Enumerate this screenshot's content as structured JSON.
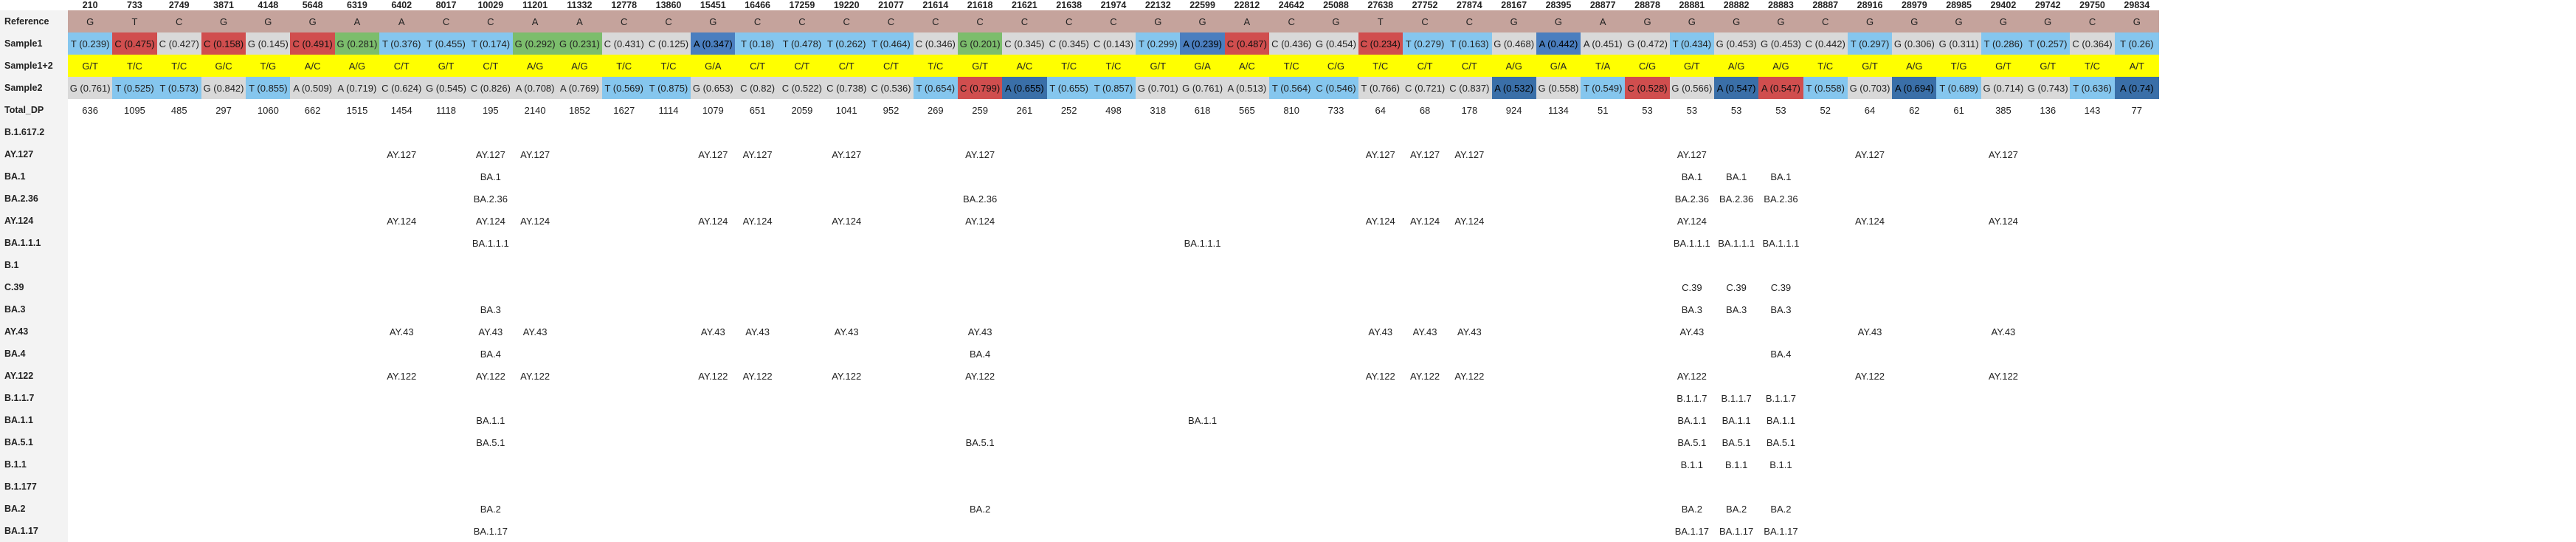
{
  "positions": [
    "210",
    "733",
    "2749",
    "3871",
    "4148",
    "5648",
    "6319",
    "6402",
    "8017",
    "10029",
    "11201",
    "11332",
    "12778",
    "13860",
    "15451",
    "16466",
    "17259",
    "19220",
    "21077",
    "21614",
    "21618",
    "21621",
    "21638",
    "21974",
    "22132",
    "22599",
    "22812",
    "24642",
    "25088",
    "27638",
    "27752",
    "27874",
    "28167",
    "28395",
    "28877",
    "28878",
    "28881",
    "28882",
    "28883",
    "28887",
    "28916",
    "28979",
    "28985",
    "29402",
    "29742",
    "29750",
    "29834"
  ],
  "rows": {
    "reference": {
      "label": "Reference",
      "cells": [
        "G",
        "T",
        "C",
        "G",
        "G",
        "G",
        "A",
        "A",
        "C",
        "C",
        "A",
        "A",
        "C",
        "C",
        "G",
        "C",
        "C",
        "C",
        "C",
        "C",
        "C",
        "C",
        "C",
        "C",
        "G",
        "G",
        "A",
        "C",
        "G",
        "T",
        "C",
        "C",
        "G",
        "G",
        "A",
        "G",
        "G",
        "G",
        "G",
        "C",
        "G",
        "G",
        "G",
        "G",
        "G",
        "C",
        "G"
      ]
    },
    "sample1": {
      "label": "Sample1",
      "cells": [
        "T (0.239)",
        "C (0.475)",
        "C (0.427)",
        "C (0.158)",
        "G (0.145)",
        "C (0.491)",
        "G (0.281)",
        "T (0.376)",
        "T (0.455)",
        "T (0.174)",
        "G (0.292)",
        "G (0.231)",
        "C (0.431)",
        "C (0.125)",
        "A (0.347)",
        "T (0.18)",
        "T (0.478)",
        "T (0.262)",
        "T (0.464)",
        "C (0.346)",
        "G (0.201)",
        "C (0.345)",
        "C (0.345)",
        "C (0.143)",
        "T (0.299)",
        "A (0.239)",
        "C (0.487)",
        "C (0.436)",
        "G (0.454)",
        "C (0.234)",
        "T (0.279)",
        "T (0.163)",
        "G (0.468)",
        "A (0.442)",
        "A (0.451)",
        "G (0.472)",
        "T (0.434)",
        "G (0.453)",
        "G (0.453)",
        "C (0.442)",
        "T (0.297)",
        "G (0.306)",
        "G (0.311)",
        "T (0.286)",
        "T (0.257)",
        "C (0.364)",
        "T (0.26)"
      ]
    },
    "sample12": {
      "label": "Sample1+2",
      "cells": [
        "G/T",
        "T/C",
        "T/C",
        "G/C",
        "T/G",
        "A/C",
        "A/G",
        "C/T",
        "G/T",
        "C/T",
        "A/G",
        "A/G",
        "T/C",
        "T/C",
        "G/A",
        "C/T",
        "C/T",
        "C/T",
        "C/T",
        "T/C",
        "G/T",
        "A/C",
        "T/C",
        "T/C",
        "G/T",
        "G/A",
        "A/C",
        "T/C",
        "C/G",
        "T/C",
        "C/T",
        "C/T",
        "A/G",
        "G/A",
        "T/A",
        "C/G",
        "G/T",
        "A/G",
        "A/G",
        "T/C",
        "G/T",
        "A/G",
        "T/G",
        "G/T",
        "G/T",
        "T/C",
        "A/T"
      ]
    },
    "sample2": {
      "label": "Sample2",
      "cells": [
        "G (0.761)",
        "T (0.525)",
        "T (0.573)",
        "G (0.842)",
        "T (0.855)",
        "A (0.509)",
        "A (0.719)",
        "C (0.624)",
        "G (0.545)",
        "C (0.826)",
        "A (0.708)",
        "A (0.769)",
        "T (0.569)",
        "T (0.875)",
        "G (0.653)",
        "C (0.82)",
        "C (0.522)",
        "C (0.738)",
        "C (0.536)",
        "T (0.654)",
        "C (0.799)",
        "A (0.655)",
        "T (0.655)",
        "T (0.857)",
        "G (0.701)",
        "G (0.761)",
        "A (0.513)",
        "T (0.564)",
        "C (0.546)",
        "T (0.766)",
        "C (0.721)",
        "C (0.837)",
        "A (0.532)",
        "G (0.558)",
        "T (0.549)",
        "C (0.528)",
        "G (0.566)",
        "A (0.547)",
        "A (0.547)",
        "T (0.558)",
        "G (0.703)",
        "A (0.694)",
        "T (0.689)",
        "G (0.714)",
        "G (0.743)",
        "T (0.636)",
        "A (0.74)"
      ]
    },
    "total_dp": {
      "label": "Total_DP",
      "cells": [
        "636",
        "1095",
        "485",
        "297",
        "1060",
        "662",
        "1515",
        "1454",
        "1118",
        "195",
        "2140",
        "1852",
        "1627",
        "1114",
        "1079",
        "651",
        "2059",
        "1041",
        "952",
        "269",
        "259",
        "261",
        "252",
        "498",
        "318",
        "618",
        "565",
        "810",
        "733",
        "64",
        "68",
        "178",
        "924",
        "1134",
        "51",
        "53",
        "53",
        "53",
        "53",
        "52",
        "64",
        "62",
        "61",
        "385",
        "136",
        "143",
        "77"
      ]
    }
  },
  "cell_colors": {
    "sample1": [
      "cT",
      "cR",
      "cC",
      "cR",
      "cC",
      "cR",
      "cGr",
      "cT",
      "cT",
      "cT",
      "cGr",
      "cGr",
      "cC",
      "cC",
      "cA",
      "cT",
      "cT",
      "cT",
      "cT",
      "cC",
      "cGr",
      "cC",
      "cC",
      "cC",
      "cT",
      "cA",
      "cR",
      "cC",
      "cC",
      "cR",
      "cT",
      "cT",
      "cC",
      "cA",
      "cC",
      "cC",
      "cT",
      "cC",
      "cC",
      "cC",
      "cT",
      "cC",
      "cC",
      "cT",
      "cT",
      "cC",
      "cT"
    ],
    "sample2": [
      "cC",
      "cT",
      "cT",
      "cC",
      "cT",
      "cC",
      "cC",
      "cC",
      "cC",
      "cC",
      "cC",
      "cC",
      "cT",
      "cT",
      "cC",
      "cC",
      "cC",
      "cC",
      "cC",
      "cT",
      "cR",
      "cDb",
      "cT",
      "cT",
      "cC",
      "cC",
      "cC",
      "cT",
      "cT",
      "cC",
      "cC",
      "cC",
      "cDb",
      "cC",
      "cT",
      "cR",
      "cC",
      "cDb",
      "cR",
      "cT",
      "cC",
      "cDb",
      "cT",
      "cC",
      "cC",
      "cT",
      "cDb"
    ]
  },
  "lineages": [
    {
      "label": "B.1.617.2",
      "cells": {}
    },
    {
      "label": "AY.127",
      "cells": {
        "6402": "AY.127",
        "10029": "AY.127",
        "11201": "AY.127",
        "15451": "AY.127",
        "16466": "AY.127",
        "19220": "AY.127",
        "21618": "AY.127",
        "27638": "AY.127",
        "27752": "AY.127",
        "27874": "AY.127",
        "28881": "AY.127",
        "28916": "AY.127",
        "29402": "AY.127"
      }
    },
    {
      "label": "BA.1",
      "cells": {
        "10029": "BA.1",
        "28881": "BA.1",
        "28882": "BA.1",
        "28883": "BA.1"
      }
    },
    {
      "label": "BA.2.36",
      "cells": {
        "10029": "BA.2.36",
        "21618": "BA.2.36",
        "28881": "BA.2.36",
        "28882": "BA.2.36",
        "28883": "BA.2.36"
      }
    },
    {
      "label": "AY.124",
      "cells": {
        "6402": "AY.124",
        "10029": "AY.124",
        "11201": "AY.124",
        "15451": "AY.124",
        "16466": "AY.124",
        "19220": "AY.124",
        "21618": "AY.124",
        "27638": "AY.124",
        "27752": "AY.124",
        "27874": "AY.124",
        "28881": "AY.124",
        "28916": "AY.124",
        "29402": "AY.124"
      }
    },
    {
      "label": "BA.1.1.1",
      "cells": {
        "10029": "BA.1.1.1",
        "22599": "BA.1.1.1",
        "28881": "BA.1.1.1",
        "28882": "BA.1.1.1",
        "28883": "BA.1.1.1"
      }
    },
    {
      "label": "B.1",
      "cells": {}
    },
    {
      "label": "C.39",
      "cells": {
        "28881": "C.39",
        "28882": "C.39",
        "28883": "C.39"
      }
    },
    {
      "label": "BA.3",
      "cells": {
        "10029": "BA.3",
        "28881": "BA.3",
        "28882": "BA.3",
        "28883": "BA.3"
      }
    },
    {
      "label": "AY.43",
      "cells": {
        "6402": "AY.43",
        "10029": "AY.43",
        "11201": "AY.43",
        "15451": "AY.43",
        "16466": "AY.43",
        "19220": "AY.43",
        "21618": "AY.43",
        "27638": "AY.43",
        "27752": "AY.43",
        "27874": "AY.43",
        "28881": "AY.43",
        "28916": "AY.43",
        "29402": "AY.43"
      }
    },
    {
      "label": "BA.4",
      "cells": {
        "10029": "BA.4",
        "21618": "BA.4",
        "28883": "BA.4"
      }
    },
    {
      "label": "AY.122",
      "cells": {
        "6402": "AY.122",
        "10029": "AY.122",
        "11201": "AY.122",
        "15451": "AY.122",
        "16466": "AY.122",
        "19220": "AY.122",
        "21618": "AY.122",
        "27638": "AY.122",
        "27752": "AY.122",
        "27874": "AY.122",
        "28881": "AY.122",
        "28916": "AY.122",
        "29402": "AY.122"
      }
    },
    {
      "label": "B.1.1.7",
      "cells": {
        "28881": "B.1.1.7",
        "28882": "B.1.1.7",
        "28883": "B.1.1.7"
      }
    },
    {
      "label": "BA.1.1",
      "cells": {
        "10029": "BA.1.1",
        "22599": "BA.1.1",
        "28881": "BA.1.1",
        "28882": "BA.1.1",
        "28883": "BA.1.1"
      }
    },
    {
      "label": "BA.5.1",
      "cells": {
        "10029": "BA.5.1",
        "21618": "BA.5.1",
        "28881": "BA.5.1",
        "28882": "BA.5.1",
        "28883": "BA.5.1"
      }
    },
    {
      "label": "B.1.1",
      "cells": {
        "28881": "B.1.1",
        "28882": "B.1.1",
        "28883": "B.1.1"
      }
    },
    {
      "label": "B.1.177",
      "cells": {}
    },
    {
      "label": "BA.2",
      "cells": {
        "10029": "BA.2",
        "21618": "BA.2",
        "28881": "BA.2",
        "28882": "BA.2",
        "28883": "BA.2"
      }
    },
    {
      "label": "BA.1.17",
      "cells": {
        "10029": "BA.1.17",
        "28881": "BA.1.17",
        "28882": "BA.1.17",
        "28883": "BA.1.17"
      }
    }
  ]
}
